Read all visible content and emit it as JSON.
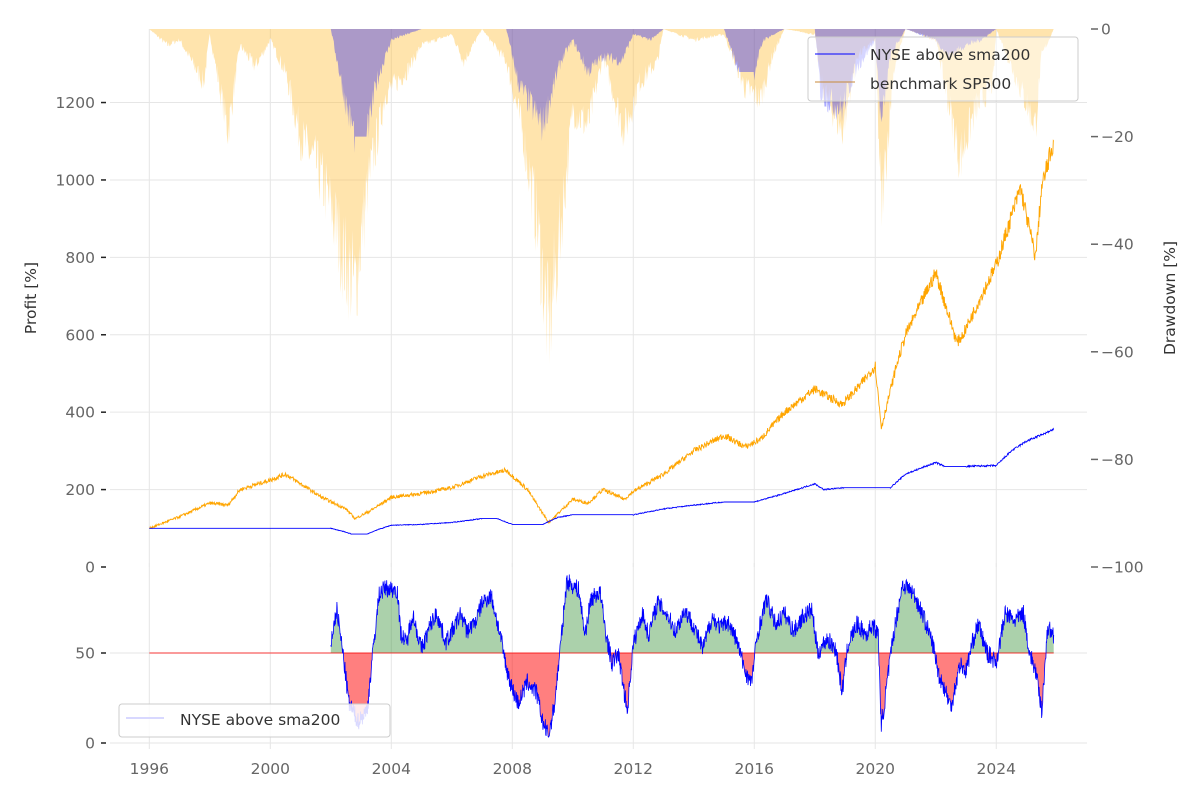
{
  "chart_data": [
    {
      "type": "line",
      "panel": "equity",
      "ylabel": "Profit [%]",
      "y2label": "Drawdown [%]",
      "ylim": [
        0,
        1390
      ],
      "y2lim": [
        -100,
        0
      ],
      "yticks": [
        "0",
        "200",
        "400",
        "600",
        "800",
        "1000",
        "1200"
      ],
      "ytick_values": [
        0,
        200,
        400,
        600,
        800,
        1000,
        1200
      ],
      "y2ticks": [
        "0",
        "−20",
        "−40",
        "−60",
        "−80",
        "−100"
      ],
      "y2tick_values": [
        0,
        -20,
        -40,
        -60,
        -80,
        -100
      ],
      "grid": true,
      "legend_position": "top-right",
      "series": [
        {
          "name": "NYSE above sma200",
          "color": "#0000ff",
          "x": [
            1996.0,
            2002.0,
            2002.4,
            2002.7,
            2003.2,
            2003.5,
            2004.0,
            2005.0,
            2006.0,
            2007.0,
            2007.5,
            2008.0,
            2009.0,
            2009.5,
            2010.0,
            2011.0,
            2012.0,
            2013.0,
            2014.0,
            2015.0,
            2016.0,
            2017.0,
            2018.0,
            2018.3,
            2019.0,
            2020.0,
            2020.5,
            2021.0,
            2022.0,
            2022.3,
            2023.0,
            2024.0,
            2024.5,
            2025.0,
            2025.9
          ],
          "values": [
            100,
            100,
            92,
            85,
            85,
            95,
            108,
            110,
            115,
            125,
            125,
            110,
            110,
            128,
            135,
            135,
            135,
            150,
            160,
            168,
            168,
            190,
            215,
            200,
            205,
            205,
            205,
            240,
            270,
            260,
            260,
            262,
            300,
            325,
            355
          ]
        },
        {
          "name": "benchmark SP500",
          "color": "#ffa500",
          "x": [
            1996.0,
            1997.0,
            1998.0,
            1998.6,
            1999.0,
            2000.0,
            2000.5,
            2001.0,
            2001.7,
            2002.5,
            2002.8,
            2003.3,
            2004.0,
            2005.0,
            2006.0,
            2007.0,
            2007.8,
            2008.5,
            2009.2,
            2010.0,
            2010.5,
            2011.0,
            2011.7,
            2012.0,
            2013.0,
            2014.0,
            2015.0,
            2015.7,
            2016.2,
            2017.0,
            2018.0,
            2018.9,
            2019.5,
            2020.0,
            2020.2,
            2020.7,
            2021.0,
            2022.0,
            2022.7,
            2022.9,
            2023.5,
            2024.0,
            2024.8,
            2025.3,
            2025.5,
            2025.9
          ],
          "values": [
            100,
            130,
            165,
            160,
            200,
            225,
            240,
            215,
            180,
            150,
            125,
            145,
            180,
            190,
            205,
            235,
            250,
            200,
            115,
            175,
            165,
            200,
            175,
            195,
            240,
            300,
            340,
            310,
            330,
            400,
            460,
            420,
            470,
            520,
            360,
            520,
            600,
            760,
            580,
            600,
            700,
            780,
            980,
            800,
            980,
            1100
          ]
        }
      ],
      "drawdown": [
        {
          "name": "NYSE above sma200 drawdown",
          "color": "#0000ff",
          "x": [
            1996.0,
            2002.0,
            2002.5,
            2002.8,
            2003.2,
            2003.5,
            2004.0,
            2005.0,
            2007.8,
            2008.2,
            2008.6,
            2009.0,
            2009.3,
            2009.6,
            2010.0,
            2010.5,
            2011.0,
            2011.6,
            2012.0,
            2012.6,
            2013.0,
            2015.0,
            2015.5,
            2016.0,
            2016.3,
            2017.0,
            2018.0,
            2018.2,
            2018.9,
            2019.3,
            2020.0,
            2020.2,
            2020.5,
            2021.0,
            2022.0,
            2022.4,
            2023.0,
            2023.5,
            2024.0,
            2025.9
          ],
          "values": [
            0,
            0,
            -14,
            -20,
            -20,
            -10,
            -2,
            0,
            0,
            -10,
            -14,
            -18,
            -12,
            -6,
            -2,
            -8,
            -5,
            -6,
            -1,
            -2,
            0,
            0,
            -8,
            -8,
            -2,
            0,
            0,
            -12,
            -15,
            -8,
            -2,
            -18,
            -5,
            0,
            -2,
            -5,
            -3,
            -2,
            0,
            0
          ]
        },
        {
          "name": "benchmark SP500 drawdown",
          "color": "#ffa500",
          "x": [
            1996.0,
            1996.6,
            1997.0,
            1997.8,
            1998.0,
            1998.6,
            1999.0,
            1999.5,
            2000.0,
            2000.5,
            2001.0,
            2001.5,
            2002.0,
            2002.4,
            2002.8,
            2003.2,
            2003.8,
            2004.5,
            2005.0,
            2006.0,
            2006.4,
            2007.0,
            2007.8,
            2008.3,
            2008.8,
            2009.2,
            2009.6,
            2010.0,
            2010.5,
            2011.0,
            2011.7,
            2012.2,
            2012.8,
            2013.0,
            2014.0,
            2015.0,
            2015.7,
            2016.2,
            2016.6,
            2017.0,
            2018.0,
            2018.2,
            2018.9,
            2019.4,
            2020.0,
            2020.2,
            2020.6,
            2021.0,
            2022.0,
            2022.8,
            2023.3,
            2023.9,
            2024.0,
            2025.3,
            2025.5,
            2025.9
          ],
          "values": [
            0,
            -3,
            -2,
            -10,
            -1,
            -19,
            -3,
            -7,
            -2,
            -8,
            -20,
            -25,
            -33,
            -42,
            -48,
            -30,
            -12,
            -8,
            -3,
            -1,
            -6,
            0,
            -6,
            -18,
            -35,
            -56,
            -37,
            -15,
            -18,
            -5,
            -19,
            -10,
            -6,
            0,
            -2,
            -1,
            -11,
            -13,
            -5,
            0,
            -1,
            -10,
            -19,
            -5,
            -2,
            -34,
            -8,
            0,
            -2,
            -24,
            -15,
            -10,
            0,
            -18,
            -5,
            0
          ]
        }
      ]
    },
    {
      "type": "area",
      "panel": "indicator",
      "threshold": 50,
      "ylim": [
        0,
        100
      ],
      "yticks": [
        "0",
        "50"
      ],
      "ytick_values": [
        0,
        50
      ],
      "xlim": [
        1994.7,
        2027.0
      ],
      "xticks": [
        "1996",
        "2000",
        "2004",
        "2008",
        "2012",
        "2016",
        "2020",
        "2024"
      ],
      "xtick_values": [
        1996,
        2000,
        2004,
        2008,
        2012,
        2016,
        2020,
        2024
      ],
      "grid": true,
      "legend_position": "bottom-left",
      "above_color": "#2e8b2e",
      "below_color": "#ff0000",
      "threshold_color": "#ff0000",
      "series": [
        {
          "name": "NYSE above sma200",
          "color": "#0000ff",
          "x": [
            2002.0,
            2002.2,
            2002.4,
            2002.6,
            2002.9,
            2003.2,
            2003.4,
            2003.6,
            2003.8,
            2004.2,
            2004.3,
            2004.5,
            2004.7,
            2005.0,
            2005.3,
            2005.5,
            2005.8,
            2006.1,
            2006.3,
            2006.5,
            2006.8,
            2007.0,
            2007.3,
            2007.6,
            2007.8,
            2008.0,
            2008.2,
            2008.5,
            2008.8,
            2009.0,
            2009.2,
            2009.4,
            2009.6,
            2009.8,
            2010.2,
            2010.4,
            2010.6,
            2010.9,
            2011.1,
            2011.3,
            2011.5,
            2011.8,
            2012.0,
            2012.3,
            2012.5,
            2012.8,
            2013.1,
            2013.4,
            2013.7,
            2014.0,
            2014.3,
            2014.6,
            2014.9,
            2015.1,
            2015.4,
            2015.7,
            2015.9,
            2016.1,
            2016.4,
            2016.7,
            2017.0,
            2017.3,
            2017.6,
            2017.9,
            2018.1,
            2018.4,
            2018.7,
            2018.9,
            2019.1,
            2019.4,
            2019.7,
            2019.9,
            2020.1,
            2020.2,
            2020.4,
            2020.6,
            2020.9,
            2021.1,
            2021.3,
            2021.6,
            2021.9,
            2022.1,
            2022.3,
            2022.5,
            2022.8,
            2023.0,
            2023.2,
            2023.4,
            2023.7,
            2024.0,
            2024.3,
            2024.6,
            2024.9,
            2025.1,
            2025.3,
            2025.5,
            2025.7,
            2025.9
          ],
          "values": [
            56,
            74,
            50,
            22,
            12,
            18,
            52,
            83,
            86,
            85,
            62,
            55,
            72,
            52,
            66,
            72,
            56,
            65,
            72,
            62,
            68,
            78,
            82,
            60,
            42,
            30,
            22,
            34,
            28,
            12,
            4,
            22,
            55,
            90,
            85,
            60,
            80,
            84,
            60,
            44,
            50,
            18,
            55,
            72,
            60,
            78,
            72,
            62,
            74,
            65,
            52,
            70,
            64,
            68,
            58,
            40,
            33,
            60,
            80,
            66,
            72,
            62,
            70,
            74,
            50,
            58,
            52,
            28,
            55,
            66,
            60,
            66,
            60,
            8,
            35,
            60,
            88,
            86,
            82,
            70,
            55,
            38,
            30,
            20,
            44,
            40,
            55,
            66,
            50,
            45,
            72,
            68,
            72,
            50,
            40,
            18,
            64,
            60
          ]
        }
      ]
    }
  ],
  "legend_top": {
    "items": [
      "NYSE above sma200",
      "benchmark SP500"
    ]
  },
  "legend_bottom": {
    "items": [
      "NYSE above sma200"
    ]
  }
}
